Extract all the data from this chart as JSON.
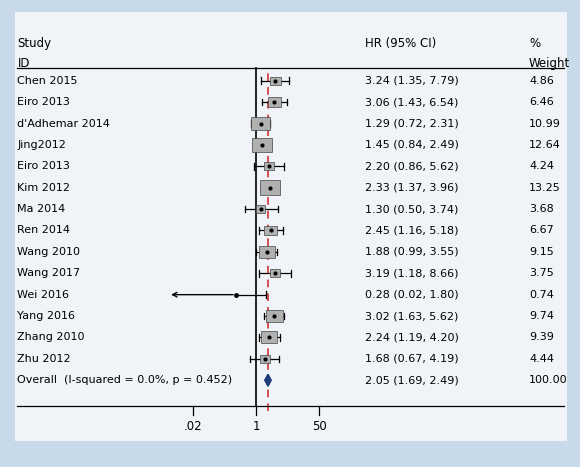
{
  "studies": [
    {
      "id": "Chen 2015",
      "hr": 3.24,
      "lo": 1.35,
      "hi": 7.79,
      "weight": 4.86
    },
    {
      "id": "Eiro 2013",
      "hr": 3.06,
      "lo": 1.43,
      "hi": 6.54,
      "weight": 6.46
    },
    {
      "id": "d'Adhemar 2014",
      "hr": 1.29,
      "lo": 0.72,
      "hi": 2.31,
      "weight": 10.99
    },
    {
      "id": "Jing2012",
      "hr": 1.45,
      "lo": 0.84,
      "hi": 2.49,
      "weight": 12.64
    },
    {
      "id": "Eiro 2013",
      "hr": 2.2,
      "lo": 0.86,
      "hi": 5.62,
      "weight": 4.24
    },
    {
      "id": "Kim 2012",
      "hr": 2.33,
      "lo": 1.37,
      "hi": 3.96,
      "weight": 13.25
    },
    {
      "id": "Ma 2014",
      "hr": 1.3,
      "lo": 0.5,
      "hi": 3.74,
      "weight": 3.68
    },
    {
      "id": "Ren 2014",
      "hr": 2.45,
      "lo": 1.16,
      "hi": 5.18,
      "weight": 6.67
    },
    {
      "id": "Wang 2010",
      "hr": 1.88,
      "lo": 0.99,
      "hi": 3.55,
      "weight": 9.15
    },
    {
      "id": "Wang 2017",
      "hr": 3.19,
      "lo": 1.18,
      "hi": 8.66,
      "weight": 3.75
    },
    {
      "id": "Wei 2016",
      "hr": 0.28,
      "lo": 0.02,
      "hi": 1.8,
      "weight": 0.74
    },
    {
      "id": "Yang 2016",
      "hr": 3.02,
      "lo": 1.63,
      "hi": 5.62,
      "weight": 9.74
    },
    {
      "id": "Zhang 2010",
      "hr": 2.24,
      "lo": 1.19,
      "hi": 4.2,
      "weight": 9.39
    },
    {
      "id": "Zhu 2012",
      "hr": 1.68,
      "lo": 0.67,
      "hi": 4.19,
      "weight": 4.44
    }
  ],
  "overall": {
    "hr": 2.05,
    "lo": 1.69,
    "hi": 2.49,
    "label": "Overall  (I-squared = 0.0%, p = 0.452)"
  },
  "outer_bg": "#c8d9ea",
  "inner_bg": "#f0f4f8",
  "box_color": "#b0b0b0",
  "line_color": "#000000",
  "dashed_line_color": "#cc2222",
  "overall_diamond_color": "#1f3e7a",
  "log_lo": -2.3,
  "log_hi": 2.0,
  "x_ticks": [
    0.02,
    1.0,
    50.0
  ],
  "x_tick_labels": [
    ".02",
    "1",
    "50"
  ],
  "max_weight": 13.25,
  "font_size": 8.0,
  "header_font_size": 8.5
}
